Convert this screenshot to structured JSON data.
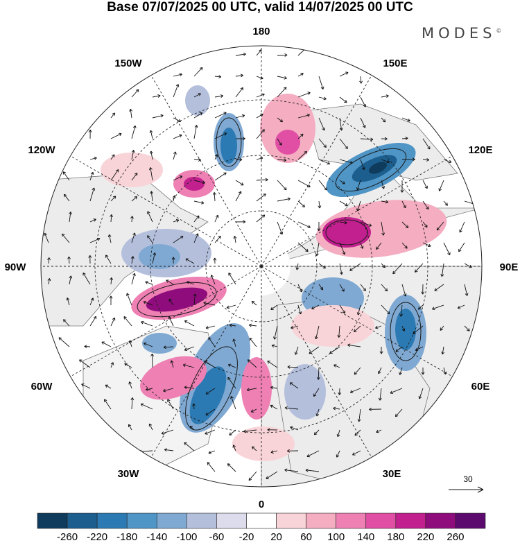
{
  "title": "Base 07/07/2025 00 UTC, valid 14/07/2025 00 UTC",
  "brand": "MODES",
  "brand_mark": "©",
  "longitude_labels": {
    "n180": "180",
    "w150": "150W",
    "e150": "150E",
    "w120": "120W",
    "e120": "120E",
    "w90": "90W",
    "e90": "90E",
    "w60": "60W",
    "e60": "60E",
    "w30": "30W",
    "e30": "30E",
    "s0": "0"
  },
  "reference_vector": "30",
  "colorbar": {
    "labels": [
      "-260",
      "-220",
      "-180",
      "-140",
      "-100",
      "-60",
      "-20",
      "20",
      "60",
      "100",
      "140",
      "180",
      "220",
      "260"
    ],
    "colors": [
      "#0f3b5c",
      "#1c5f8f",
      "#2c7ab3",
      "#4f95c6",
      "#7fa9d2",
      "#b4bfdc",
      "#dcdcec",
      "#ffffff",
      "#f8d4d8",
      "#f4adc1",
      "#ee80b3",
      "#e04fa4",
      "#c1208e",
      "#8f0c7d",
      "#5c0a6e"
    ]
  },
  "colors": {
    "land": "#ececec",
    "ocean": "#ffffff",
    "coast": "#777777",
    "contour": "#1a1a1a"
  }
}
